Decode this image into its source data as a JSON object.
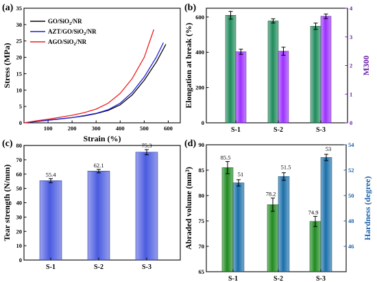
{
  "chart_data": [
    {
      "panel": "(a)",
      "type": "line",
      "xlabel": "Strain (%)",
      "ylabel": "Stress (MPa)",
      "xlim": [
        0,
        650
      ],
      "ylim": [
        0,
        35
      ],
      "xticks": [
        100,
        200,
        300,
        400,
        500,
        600
      ],
      "yticks": [
        0,
        5,
        10,
        15,
        20,
        25,
        30,
        35
      ],
      "legend_position": "top-left",
      "series": [
        {
          "name": "GO/SiO₂/NR",
          "color": "#000000",
          "x": [
            0,
            50,
            100,
            150,
            200,
            250,
            300,
            350,
            400,
            450,
            500,
            550,
            590
          ],
          "y": [
            0,
            0.4,
            0.8,
            1.2,
            1.6,
            2.1,
            2.8,
            3.8,
            5.5,
            8.5,
            13.0,
            18.5,
            24.0
          ]
        },
        {
          "name": "AZT/GO/SiO₂/NR",
          "color": "#1f1fdc",
          "x": [
            0,
            50,
            100,
            150,
            200,
            250,
            300,
            350,
            400,
            450,
            500,
            550,
            580
          ],
          "y": [
            0,
            0.4,
            0.8,
            1.2,
            1.6,
            2.2,
            2.9,
            4.0,
            6.0,
            9.3,
            14.0,
            20.0,
            24.5
          ]
        },
        {
          "name": "AGO/SiO₂/NR",
          "color": "#ee1c1c",
          "x": [
            0,
            50,
            100,
            150,
            200,
            250,
            300,
            350,
            400,
            450,
            500,
            540
          ],
          "y": [
            0,
            0.6,
            1.1,
            1.7,
            2.3,
            3.1,
            4.2,
            6.0,
            9.0,
            13.5,
            20.0,
            28.5
          ]
        }
      ]
    },
    {
      "panel": "(b)",
      "type": "bar",
      "categories": [
        "S-1",
        "S-2",
        "S-3"
      ],
      "ylabel": "Elongation at break (%)",
      "ylabel_right": "M300",
      "ylim": [
        0,
        650
      ],
      "ylim_right": [
        0,
        4
      ],
      "yticks": [
        0,
        200,
        400,
        600
      ],
      "yticks_right": [
        0,
        1,
        2,
        3,
        4
      ],
      "right_axis_color": "#6a1fa8",
      "series": [
        {
          "axis": "left",
          "color": "#1e8a5a",
          "values": [
            610,
            578,
            548
          ],
          "errors": [
            22,
            12,
            18
          ]
        },
        {
          "axis": "right",
          "color": "#9b30ff",
          "values": [
            2.48,
            2.5,
            3.72
          ],
          "errors": [
            0.09,
            0.14,
            0.08
          ]
        }
      ]
    },
    {
      "panel": "(c)",
      "type": "bar",
      "categories": [
        "S-1",
        "S-2",
        "S-3"
      ],
      "ylabel": "Tear strength (N/mm)",
      "ylim": [
        0,
        80
      ],
      "yticks": [
        0,
        10,
        20,
        30,
        40,
        50,
        60,
        70,
        80
      ],
      "series": [
        {
          "color": "#4a5be0",
          "values": [
            55.4,
            62.1,
            75.3
          ],
          "errors": [
            1.4,
            1.2,
            1.8
          ],
          "data_labels": [
            "55.4",
            "62.1",
            "75.3"
          ]
        }
      ]
    },
    {
      "panel": "(d)",
      "type": "bar",
      "categories": [
        "S-1",
        "S-2",
        "S-3"
      ],
      "ylabel": "Abraded volume (mm³)",
      "ylabel_right": "Hardness (degree)",
      "ylim": [
        65,
        90
      ],
      "ylim_right": [
        44,
        54
      ],
      "yticks": [
        65,
        70,
        75,
        80,
        85,
        90
      ],
      "yticks_right": [
        46,
        48,
        50,
        52,
        54
      ],
      "right_axis_color": "#1a5fa8",
      "series": [
        {
          "axis": "left",
          "color": "#1f8a1f",
          "values": [
            85.5,
            78.2,
            74.9
          ],
          "errors": [
            1.2,
            1.3,
            1.0
          ],
          "data_labels": [
            "85.5",
            "78.2",
            "74.9"
          ]
        },
        {
          "axis": "right",
          "color": "#1a6faa",
          "values": [
            51,
            51.5,
            53
          ],
          "errors": [
            0.25,
            0.3,
            0.25
          ],
          "data_labels": [
            "51",
            "51.5",
            "53"
          ]
        }
      ]
    }
  ]
}
